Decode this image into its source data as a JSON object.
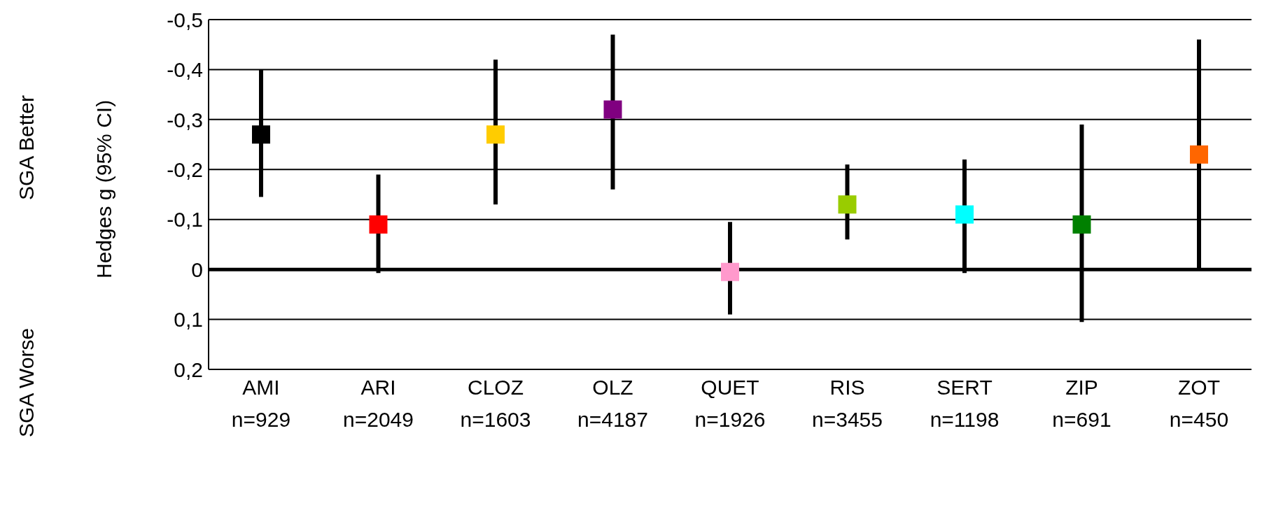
{
  "chart_data": {
    "type": "scatter",
    "ylabel": "Hedges g (95% CI)",
    "annotations": [
      "SGA Better",
      "SGA Worse"
    ],
    "categories": [
      "AMI\nn=929",
      "ARI\nn=2049",
      "CLOZ\nn=1603",
      "OLZ\nn=4187",
      "QUET\nn=1926",
      "RIS\nn=3455",
      "SERT\nn=1198",
      "ZIP\nn=691",
      "ZOT\nn=450"
    ],
    "values": [
      -0.27,
      -0.09,
      -0.27,
      -0.32,
      0.005,
      -0.13,
      -0.11,
      -0.09,
      -0.23
    ],
    "errors": [
      [
        -0.4,
        -0.145
      ],
      [
        -0.19,
        0.007
      ],
      [
        -0.42,
        -0.13
      ],
      [
        -0.47,
        -0.16
      ],
      [
        -0.095,
        0.09
      ],
      [
        -0.21,
        -0.06
      ],
      [
        -0.22,
        0.007
      ],
      [
        -0.29,
        0.105
      ],
      [
        -0.46,
        0.0
      ]
    ],
    "colors": [
      "#000000",
      "#ff0000",
      "#ffcc00",
      "#800080",
      "#ff99cc",
      "#99cc00",
      "#00ffff",
      "#008000",
      "#ff6600"
    ],
    "marker": "square",
    "ylim": [
      0.2,
      -0.5
    ],
    "yticks": [
      {
        "value": -0.5,
        "label": "-0,5"
      },
      {
        "value": -0.4,
        "label": "-0,4"
      },
      {
        "value": -0.3,
        "label": "-0,3"
      },
      {
        "value": -0.2,
        "label": "-0,2"
      },
      {
        "value": -0.1,
        "label": "-0,1"
      },
      0,
      {
        "value": 0.1,
        "label": "0,1"
      },
      {
        "value": 0.2,
        "label": "0,2"
      }
    ],
    "grid": "y",
    "ref_lines": [
      {
        "axis": "y",
        "value": 0,
        "color": "#000000"
      }
    ]
  }
}
